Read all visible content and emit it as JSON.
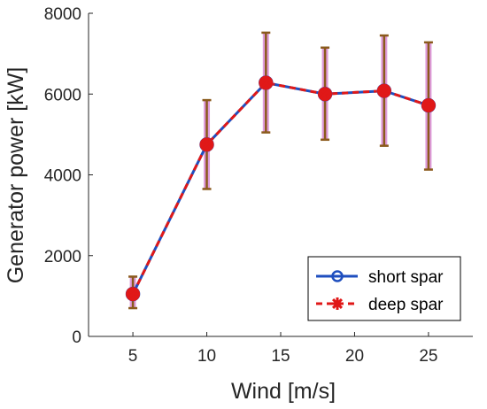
{
  "chart_data": {
    "type": "line",
    "xlabel": "Wind [m/s]",
    "ylabel": "Generator power [kW]",
    "xlim": [
      2,
      28
    ],
    "ylim": [
      0,
      8000
    ],
    "xticks": [
      5,
      10,
      15,
      20,
      25
    ],
    "yticks": [
      0,
      2000,
      4000,
      6000,
      8000
    ],
    "x": [
      5,
      10,
      14,
      18,
      22,
      25
    ],
    "series": [
      {
        "name": "short spar",
        "marker": "circle",
        "line_style": "solid",
        "values": [
          1050,
          4750,
          6280,
          6000,
          6080,
          5720
        ],
        "error_lower": [
          700,
          3650,
          5050,
          4870,
          4720,
          4130
        ],
        "error_upper": [
          1480,
          5850,
          7520,
          7150,
          7450,
          7280
        ],
        "color": "#1f4fbf",
        "error_color": "#c44dbf"
      },
      {
        "name": "deep spar",
        "marker": "asterisk",
        "line_style": "dashed",
        "values": [
          1050,
          4750,
          6280,
          6000,
          6080,
          5720
        ],
        "error_lower": [
          700,
          3650,
          5050,
          4870,
          4720,
          4130
        ],
        "error_upper": [
          1480,
          5850,
          7520,
          7150,
          7450,
          7280
        ],
        "color": "#e01818",
        "error_color": "#8b5a1c"
      }
    ],
    "legend_position": "bottom-right",
    "grid": false
  }
}
